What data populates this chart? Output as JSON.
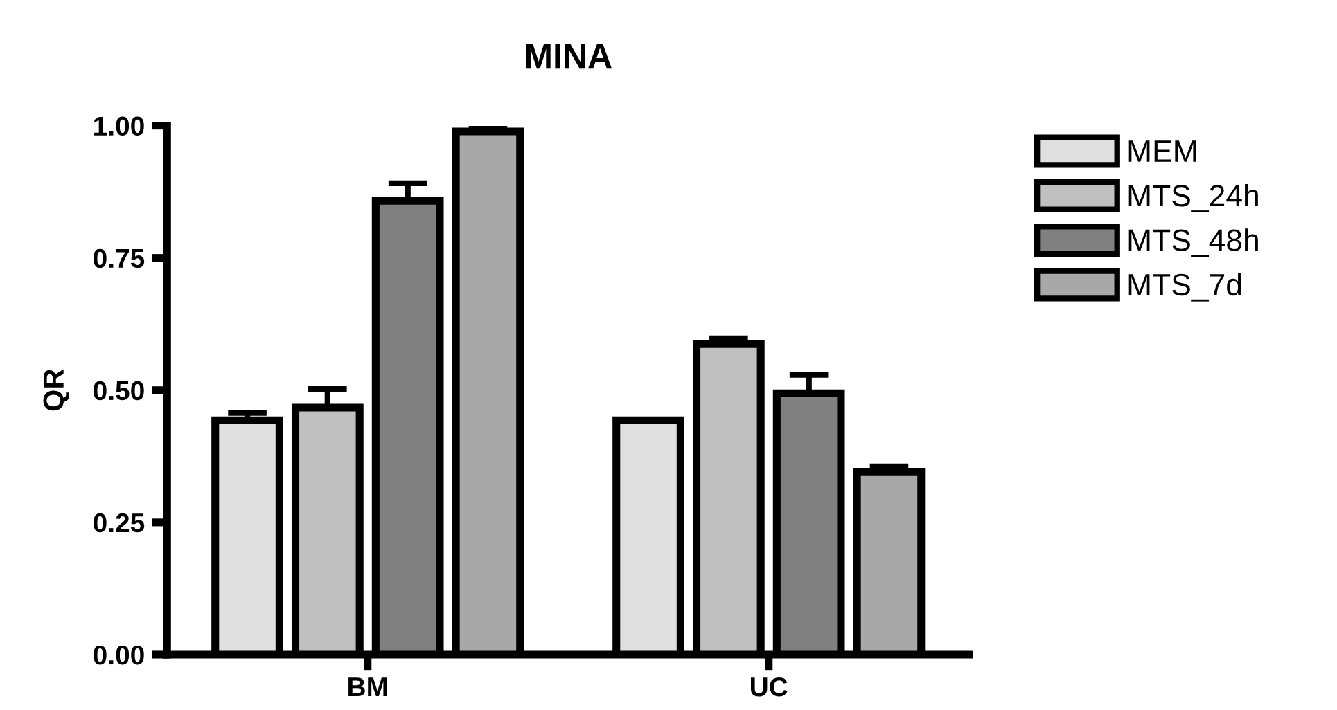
{
  "chart_data": {
    "type": "bar",
    "title": "MINA",
    "ylabel": "QR",
    "categories": [
      "BM",
      "UC"
    ],
    "series": [
      {
        "name": "MEM",
        "color": "#e0e0e0",
        "values": [
          0.443,
          0.443
        ],
        "errors": [
          [
            0.443,
            0.457
          ],
          null
        ]
      },
      {
        "name": "MTS_24h",
        "color": "#c0c0c0",
        "values": [
          0.467,
          0.587
        ],
        "errors": [
          [
            0.467,
            0.502
          ],
          [
            0.587,
            0.598
          ]
        ]
      },
      {
        "name": "MTS_48h",
        "color": "#808080",
        "values": [
          0.858,
          0.494
        ],
        "errors": [
          [
            0.858,
            0.891
          ],
          [
            0.494,
            0.529
          ]
        ]
      },
      {
        "name": "MTS_7d",
        "color": "#a8a8a8",
        "values": [
          0.989,
          0.345
        ],
        "errors": [
          [
            0.989,
            0.994
          ],
          [
            0.345,
            0.356
          ]
        ]
      }
    ],
    "ylim": [
      0,
      1
    ],
    "yticks": [
      {
        "value": 0,
        "label": "0.00"
      },
      {
        "value": 0.25,
        "label": "0.25"
      },
      {
        "value": 0.5,
        "label": "0.50"
      },
      {
        "value": 0.75,
        "label": "0.75"
      },
      {
        "value": 1,
        "label": "1.00"
      }
    ],
    "grid": false,
    "legend": "top right"
  }
}
